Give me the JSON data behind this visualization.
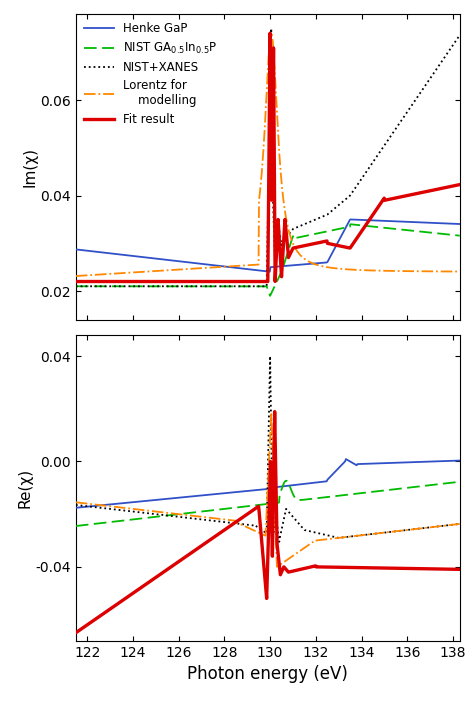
{
  "x_min": 121.5,
  "x_max": 138.3,
  "im_ylim": [
    0.014,
    0.078
  ],
  "re_ylim": [
    -0.068,
    0.048
  ],
  "im_yticks": [
    0.02,
    0.04,
    0.06
  ],
  "re_yticks": [
    -0.04,
    0.0,
    0.04
  ],
  "xlabel": "Photon energy (eV)",
  "im_ylabel": "Im(χ)",
  "re_ylabel": "Re(χ)",
  "colors": {
    "henke": "#3050c8",
    "nist": "#00bb00",
    "xanes": "#000000",
    "lorentz": "#ff8800",
    "fit": "#dd0000"
  },
  "edge_energy": 130.0
}
